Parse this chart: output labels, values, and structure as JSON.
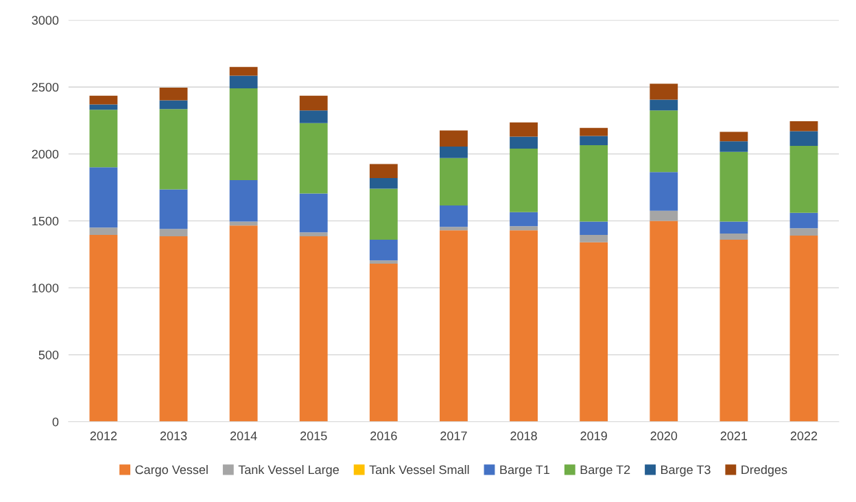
{
  "chart_data": {
    "type": "bar",
    "stacked": true,
    "categories": [
      "2012",
      "2013",
      "2014",
      "2015",
      "2016",
      "2017",
      "2018",
      "2019",
      "2020",
      "2021",
      "2022"
    ],
    "series": [
      {
        "name": "Cargo Vessel",
        "color": "#ed7d31",
        "values": [
          1395,
          1385,
          1465,
          1385,
          1180,
          1430,
          1430,
          1340,
          1500,
          1360,
          1390
        ]
      },
      {
        "name": "Tank Vessel Large",
        "color": "#a5a5a5",
        "values": [
          55,
          55,
          30,
          30,
          25,
          25,
          30,
          55,
          75,
          45,
          55
        ]
      },
      {
        "name": "Tank Vessel Small",
        "color": "#ffc000",
        "values": [
          0,
          0,
          0,
          0,
          0,
          0,
          0,
          0,
          0,
          0,
          0
        ]
      },
      {
        "name": "Barge T1",
        "color": "#4472c4",
        "values": [
          450,
          295,
          310,
          290,
          155,
          160,
          105,
          100,
          290,
          90,
          115
        ]
      },
      {
        "name": "Barge T2",
        "color": "#70ad47",
        "values": [
          430,
          600,
          685,
          525,
          380,
          355,
          475,
          570,
          460,
          520,
          500
        ]
      },
      {
        "name": "Barge T3",
        "color": "#255e91",
        "values": [
          40,
          65,
          95,
          95,
          80,
          85,
          90,
          70,
          80,
          80,
          110
        ]
      },
      {
        "name": "Dredges",
        "color": "#9e480e",
        "values": [
          65,
          95,
          65,
          110,
          105,
          120,
          105,
          60,
          120,
          70,
          75
        ]
      }
    ],
    "ylim": [
      0,
      3000
    ],
    "yticks": [
      0,
      500,
      1000,
      1500,
      2000,
      2500,
      3000
    ],
    "grid": "y",
    "legend": "bottom"
  }
}
